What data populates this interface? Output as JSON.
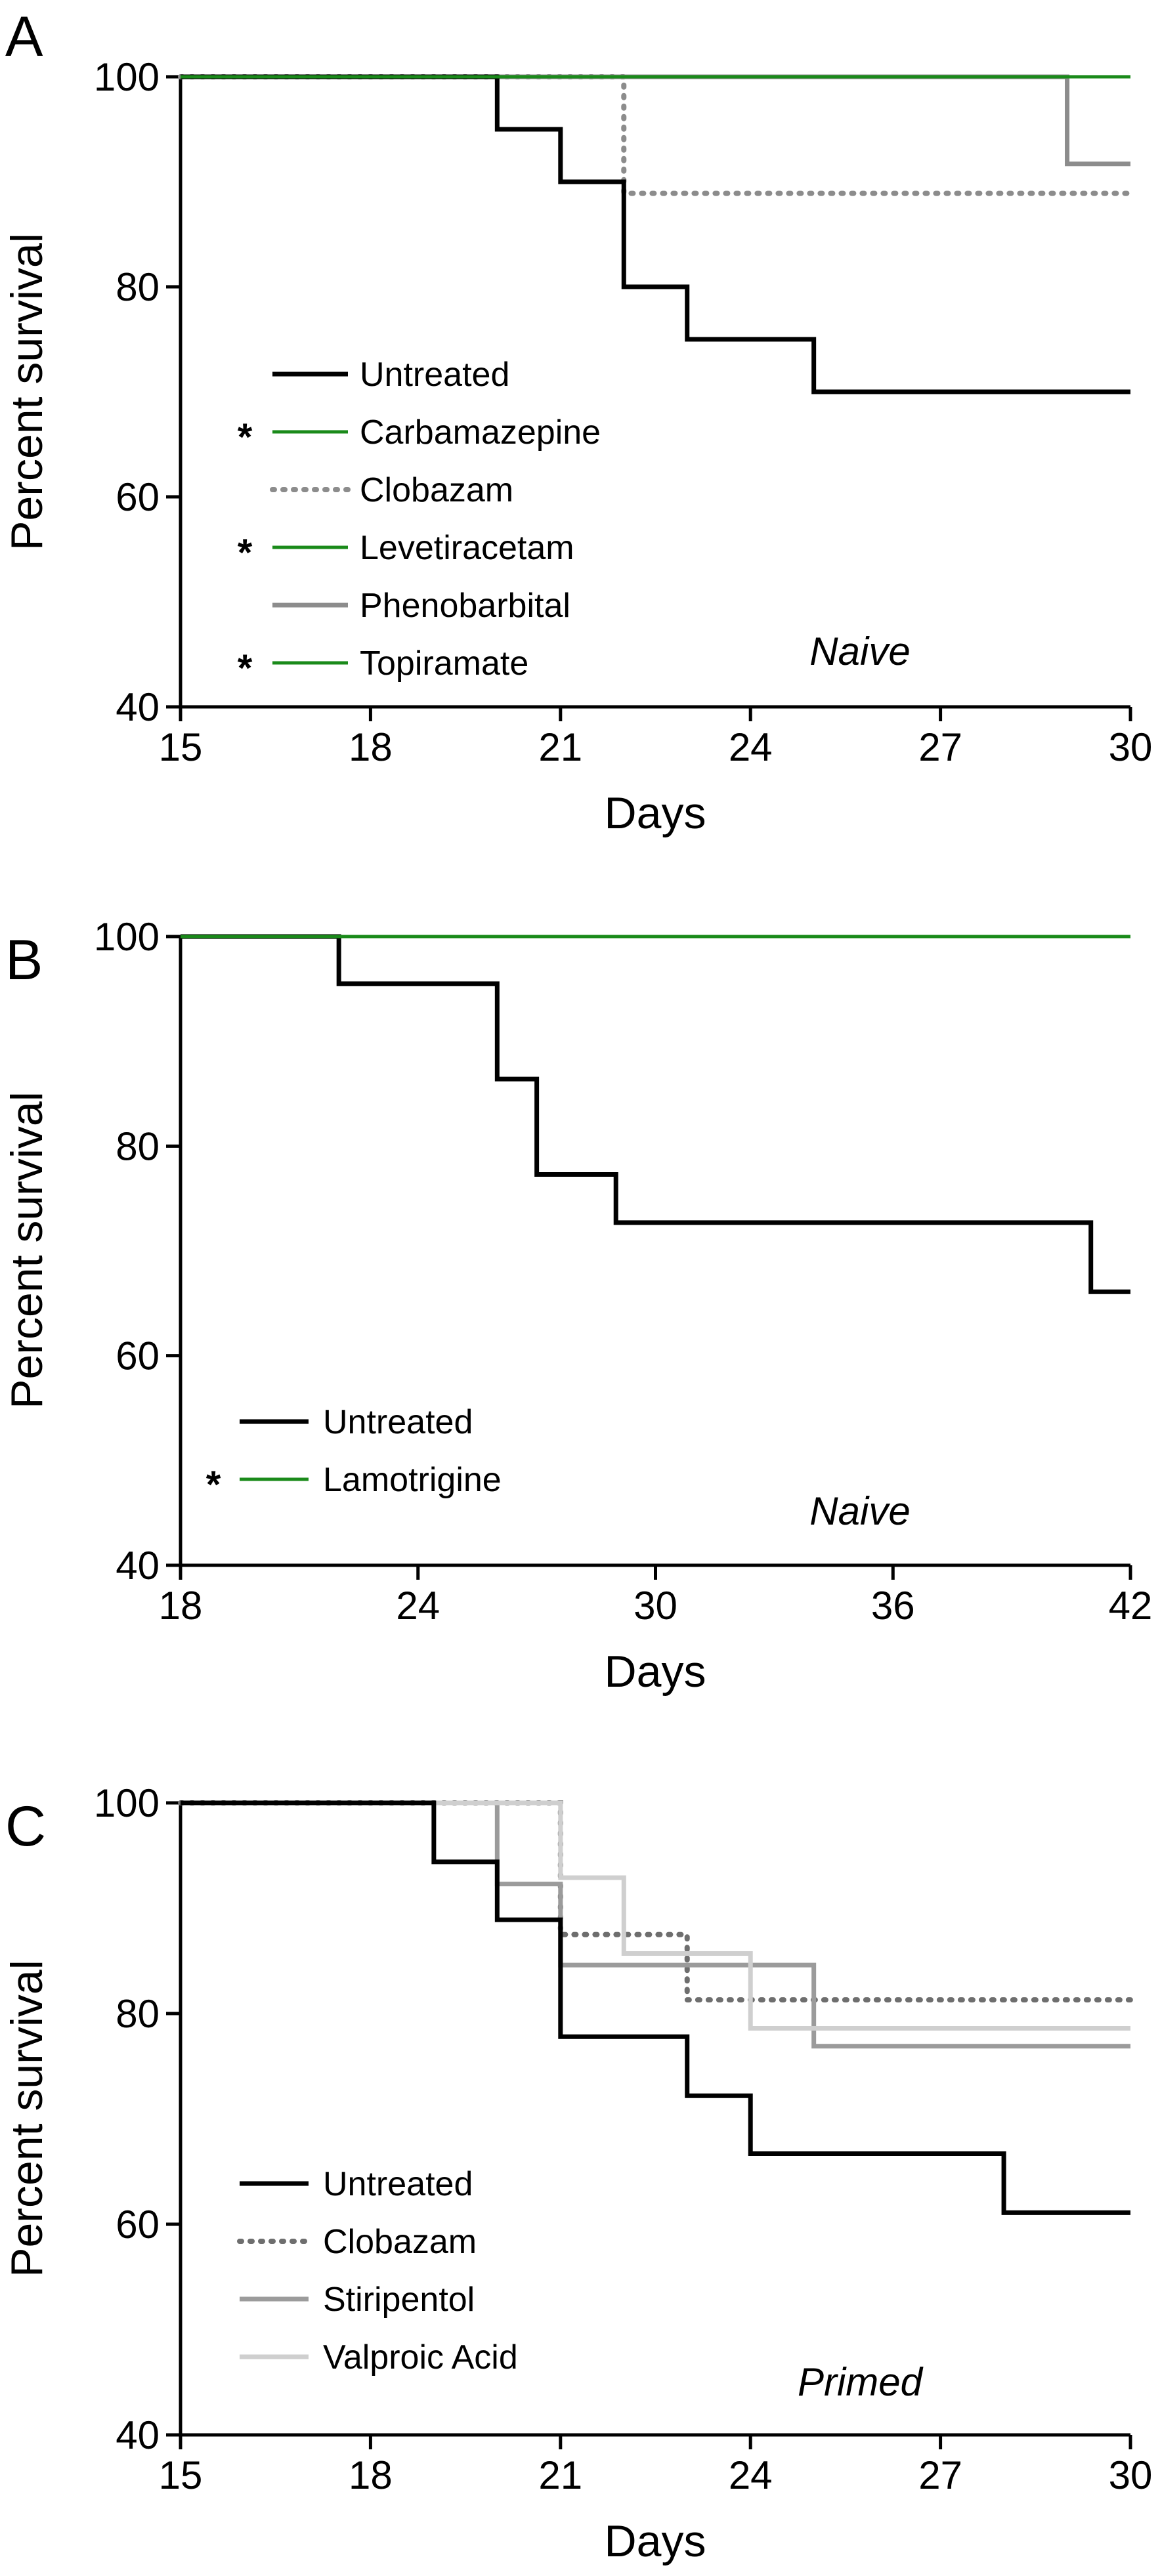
{
  "colors": {
    "untreated": "#000000",
    "green": "#1a8a1a",
    "clobazam": "#8c8c8c",
    "clobazam_c": "#6e6e6e",
    "phenobarbital": "#8c8c8c",
    "stiripentol": "#9b9b9b",
    "valproic": "#cfcfcf"
  },
  "chart_data": [
    {
      "type": "line",
      "step": true,
      "panel_letter": "A",
      "note": "Naive",
      "xlabel": "Days",
      "ylabel": "Percent survival",
      "xlim": [
        15,
        30
      ],
      "ylim": [
        40,
        100
      ],
      "xticks": [
        15,
        18,
        21,
        24,
        27,
        30
      ],
      "yticks": [
        40,
        60,
        80,
        100
      ],
      "grid": false,
      "legend_position": "bottom-left",
      "series": [
        {
          "name": "Untreated",
          "significant": false,
          "color": "untreated",
          "style": "solid",
          "x": [
            15,
            20,
            21,
            22,
            23,
            25,
            30
          ],
          "y": [
            100,
            95,
            90,
            80,
            75,
            70,
            70
          ]
        },
        {
          "name": "Carbamazepine",
          "significant": true,
          "color": "green",
          "style": "solid",
          "x": [
            15,
            30
          ],
          "y": [
            100,
            100
          ]
        },
        {
          "name": "Clobazam",
          "significant": false,
          "color": "clobazam",
          "style": "dotted",
          "x": [
            15,
            22,
            30
          ],
          "y": [
            100,
            88.9,
            88.9
          ]
        },
        {
          "name": "Levetiracetam",
          "significant": true,
          "color": "green",
          "style": "solid",
          "x": [
            15,
            30
          ],
          "y": [
            100,
            100
          ]
        },
        {
          "name": "Phenobarbital",
          "significant": false,
          "color": "phenobarbital",
          "style": "solid",
          "x": [
            15,
            29,
            30
          ],
          "y": [
            100,
            91.7,
            91.7
          ]
        },
        {
          "name": "Topiramate",
          "significant": true,
          "color": "green",
          "style": "solid",
          "x": [
            15,
            30
          ],
          "y": [
            100,
            100
          ]
        }
      ]
    },
    {
      "type": "line",
      "step": true,
      "panel_letter": "B",
      "note": "Naive",
      "xlabel": "Days",
      "ylabel": "Percent survival",
      "xlim": [
        18,
        42
      ],
      "ylim": [
        40,
        100
      ],
      "xticks": [
        18,
        24,
        30,
        36,
        42
      ],
      "yticks": [
        40,
        60,
        80,
        100
      ],
      "grid": false,
      "legend_position": "bottom-left",
      "series": [
        {
          "name": "Untreated",
          "significant": false,
          "color": "untreated",
          "style": "solid",
          "x": [
            18,
            22,
            26,
            27,
            29,
            41,
            42
          ],
          "y": [
            100,
            95.5,
            86.4,
            77.3,
            72.7,
            66.1,
            66.1
          ]
        },
        {
          "name": "Lamotrigine",
          "significant": true,
          "color": "green",
          "style": "solid",
          "x": [
            18,
            42
          ],
          "y": [
            100,
            100
          ]
        }
      ]
    },
    {
      "type": "line",
      "step": true,
      "panel_letter": "C",
      "note": "Primed",
      "xlabel": "Days",
      "ylabel": "Percent survival",
      "xlim": [
        15,
        30
      ],
      "ylim": [
        40,
        100
      ],
      "xticks": [
        15,
        18,
        21,
        24,
        27,
        30
      ],
      "yticks": [
        40,
        60,
        80,
        100
      ],
      "grid": false,
      "legend_position": "bottom-left",
      "series": [
        {
          "name": "Untreated",
          "significant": false,
          "color": "untreated",
          "style": "solid",
          "x": [
            15,
            19,
            20,
            21,
            23,
            24,
            28,
            30
          ],
          "y": [
            100,
            94.4,
            88.9,
            77.8,
            72.2,
            66.7,
            61.1,
            61.1
          ]
        },
        {
          "name": "Clobazam",
          "significant": false,
          "color": "clobazam_c",
          "style": "dotted",
          "x": [
            15,
            21,
            23,
            30
          ],
          "y": [
            100,
            87.5,
            81.3,
            81.3
          ]
        },
        {
          "name": "Stiripentol",
          "significant": false,
          "color": "stiripentol",
          "style": "solid",
          "x": [
            15,
            20,
            21,
            25,
            30
          ],
          "y": [
            100,
            92.3,
            84.6,
            76.9,
            76.9
          ]
        },
        {
          "name": "Valproic Acid",
          "significant": false,
          "color": "valproic",
          "style": "solid",
          "x": [
            15,
            21,
            22,
            24,
            30
          ],
          "y": [
            100,
            92.9,
            85.7,
            78.6,
            78.6
          ]
        }
      ]
    }
  ]
}
